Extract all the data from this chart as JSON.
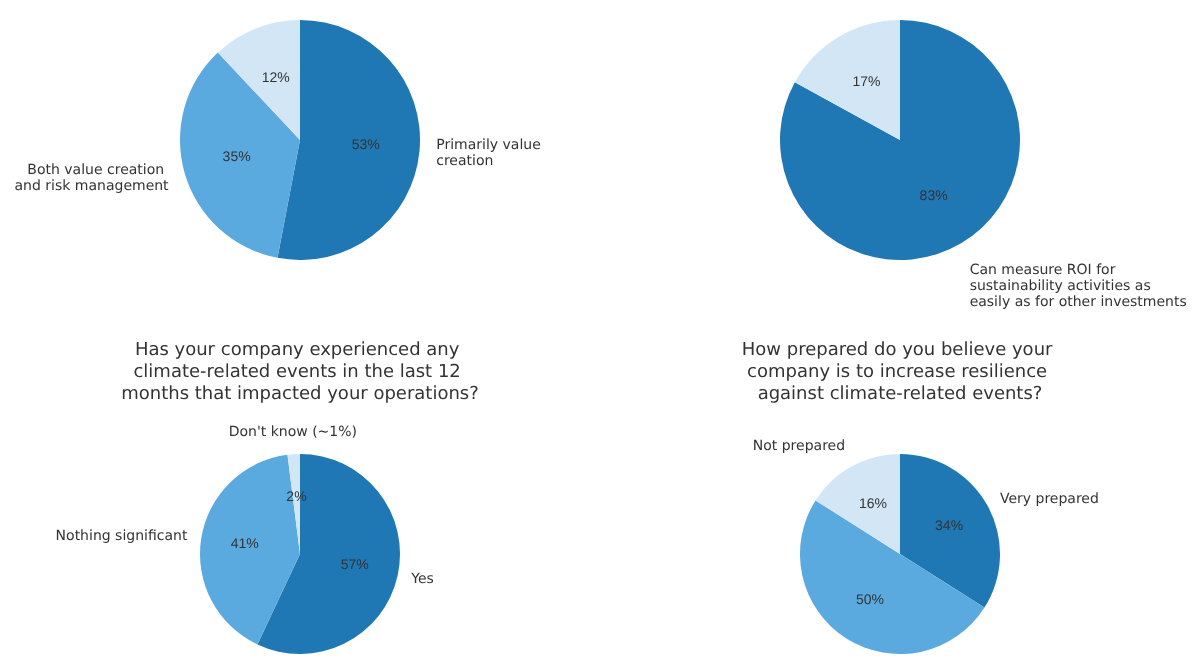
{
  "chart_data": [
    {
      "type": "pie",
      "categories": [
        "Primarily value creation",
        "Both value creation and risk management",
        null
      ],
      "values": [
        53,
        35,
        12
      ],
      "value_labels": [
        "53%",
        "35%",
        "12%"
      ],
      "colors": [
        "#1f77b4",
        "#5aaae0",
        "#d2e6f6"
      ]
    },
    {
      "type": "pie",
      "categories": [
        "Can measure ROI for sustainability activities as easily as for other investments",
        null
      ],
      "values": [
        83,
        17
      ],
      "value_labels": [
        "83%",
        "17%"
      ],
      "colors": [
        "#1f77b4",
        "#d2e6f6"
      ]
    },
    {
      "type": "pie",
      "title": "Has your company experienced any climate-related events in the last 12 months that impacted your operations?",
      "categories": [
        "Yes",
        "Nothing significant",
        "Don't know (~1%)"
      ],
      "values": [
        57,
        41,
        2
      ],
      "value_labels": [
        "57%",
        "41%",
        "2%"
      ],
      "colors": [
        "#1f77b4",
        "#5aaae0",
        "#d2e6f6"
      ]
    },
    {
      "type": "pie",
      "title": "How prepared do you believe your company is to increase resilience against climate-related events?",
      "categories": [
        "Very prepared",
        null,
        "Not prepared"
      ],
      "values": [
        34,
        50,
        16
      ],
      "value_labels": [
        "34%",
        "50%",
        "16%"
      ],
      "colors": [
        "#1f77b4",
        "#5aaae0",
        "#d2e6f6"
      ]
    }
  ]
}
